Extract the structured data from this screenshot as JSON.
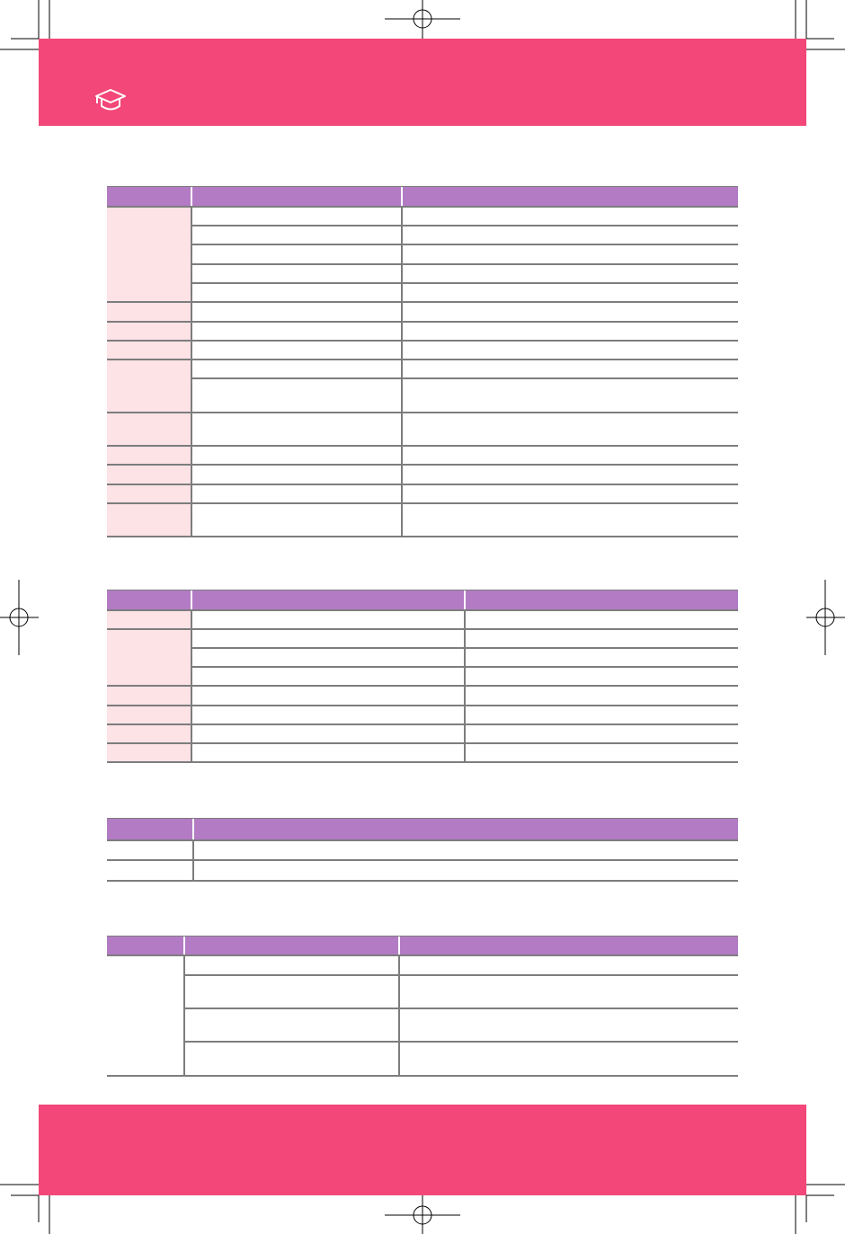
{
  "header": {
    "icon": "graduation-cap-icon"
  },
  "colors": {
    "brand": "#f24778",
    "table_header": "#b27bc4",
    "group_cell": "#fde2e6",
    "rule": "#7d7d7d"
  },
  "tables_count": 4
}
